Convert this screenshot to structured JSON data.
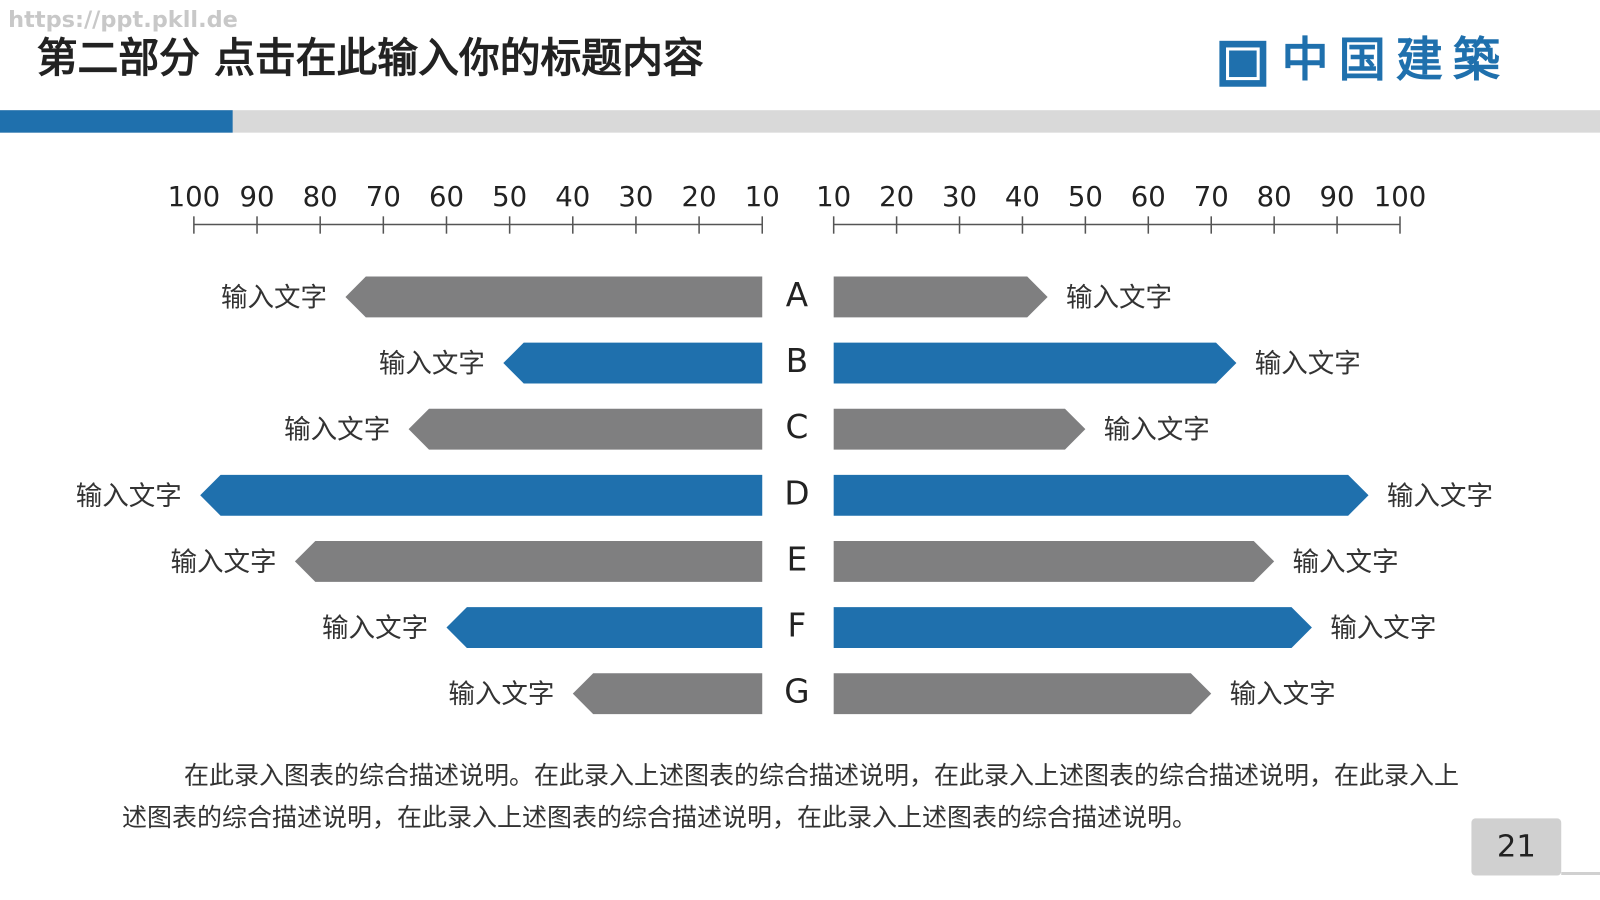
{
  "header": {
    "watermark": "https://ppt.pkll.de",
    "title": "第二部分  点击在此输入你的标题内容",
    "logo": "中国建築"
  },
  "chart_data": {
    "type": "butterfly",
    "categories": [
      "A",
      "B",
      "C",
      "D",
      "E",
      "F",
      "G"
    ],
    "colors": [
      "#7f7f80",
      "#1f70ad",
      "#7f7f80",
      "#1f70ad",
      "#7f7f80",
      "#1f70ad",
      "#7f7f80"
    ],
    "xlim": [
      10,
      100
    ],
    "xticks": [
      10,
      20,
      30,
      40,
      50,
      60,
      70,
      80,
      90,
      100
    ],
    "series": [
      {
        "side": "left",
        "values": [
          76,
          51,
          66,
          99,
          84,
          60,
          40
        ],
        "labels": [
          "输入文字",
          "输入文字",
          "输入文字",
          "输入文字",
          "输入文字",
          "输入文字",
          "输入文字"
        ]
      },
      {
        "side": "right",
        "values": [
          44,
          74,
          50,
          95,
          80,
          86,
          70
        ],
        "labels": [
          "输入文字",
          "输入文字",
          "输入文字",
          "输入文字",
          "输入文字",
          "输入文字",
          "输入文字"
        ]
      }
    ]
  },
  "description": "在此录入图表的综合描述说明。在此录入上述图表的综合描述说明，在此录入上述图表的综合描述说明，在此录入上述图表的综合描述说明，在此录入上述图表的综合描述说明，在此录入上述图表的综合描述说明。",
  "page_number": "21"
}
